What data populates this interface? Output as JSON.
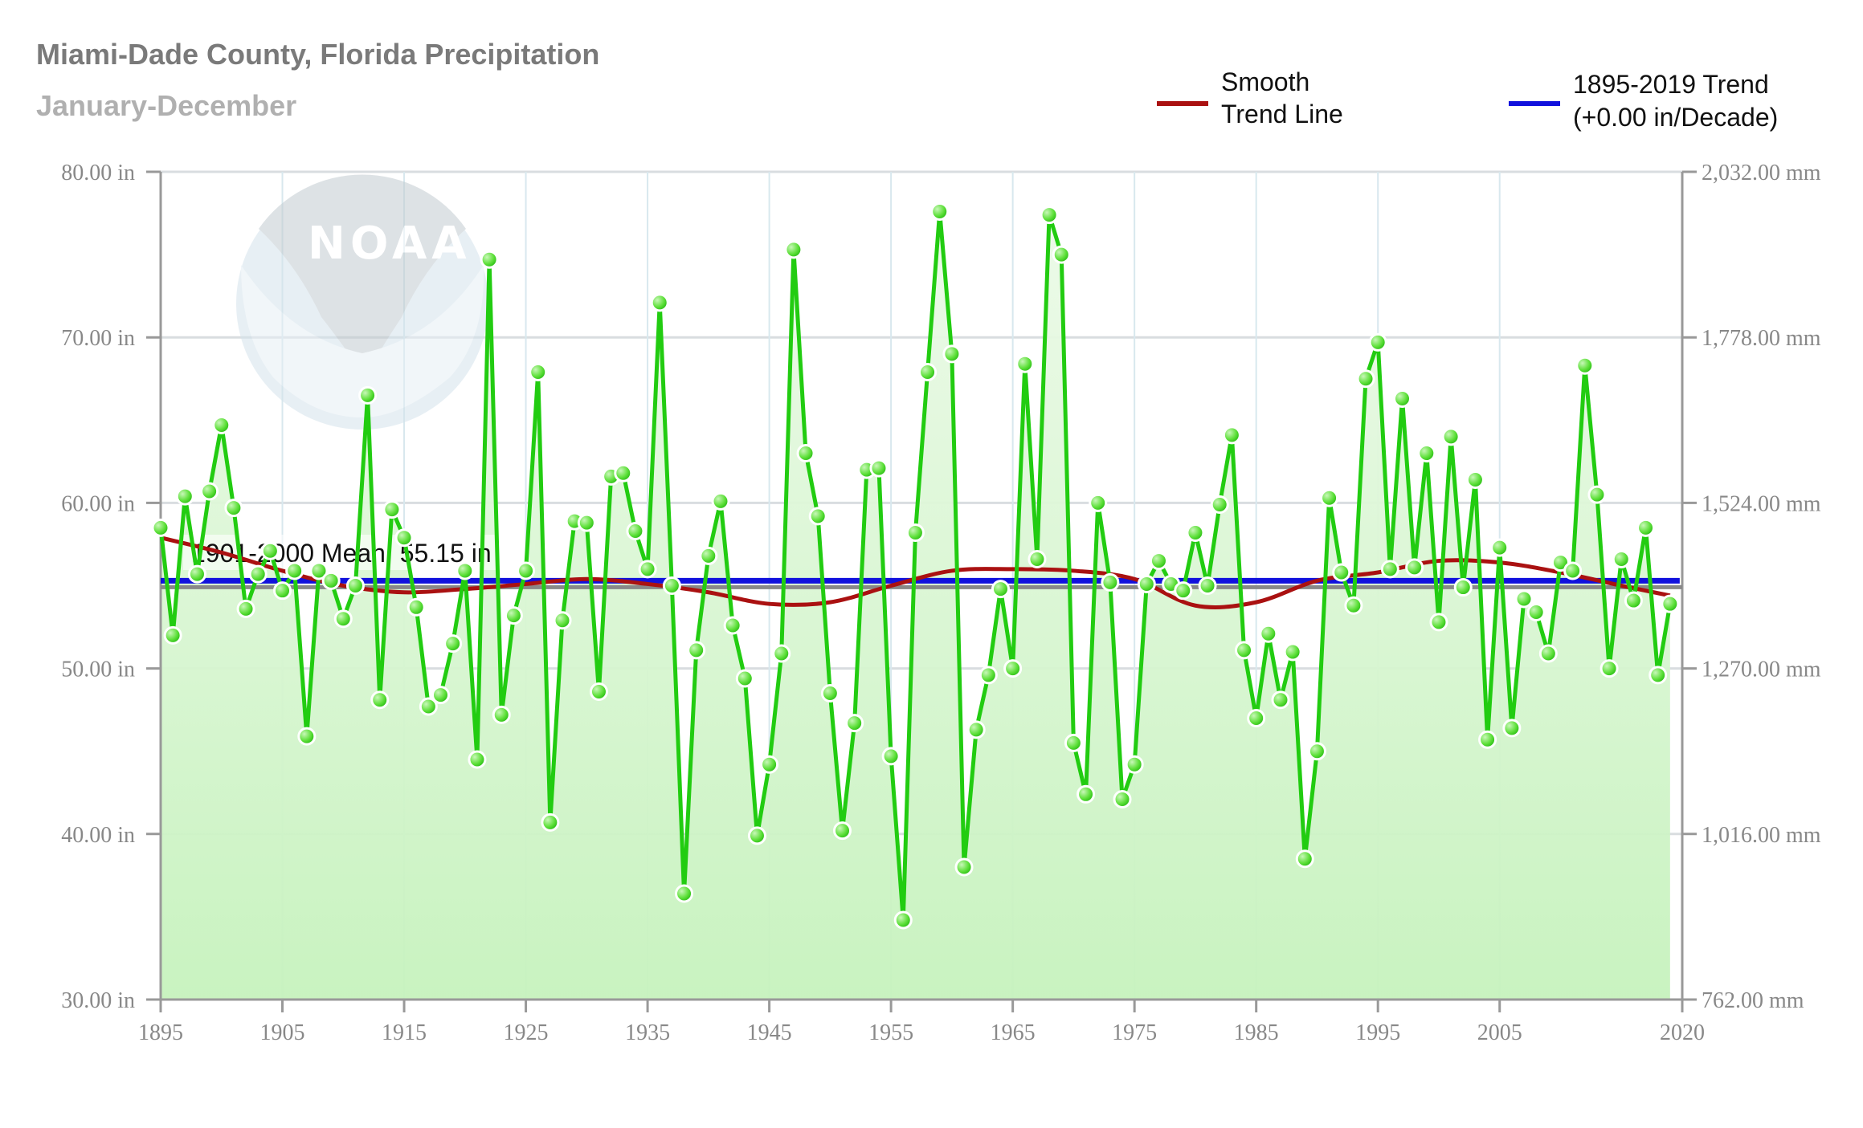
{
  "header": {
    "title": "Miami-Dade County, Florida Precipitation",
    "subtitle": "January-December"
  },
  "legend": {
    "smooth_line1": "Smooth",
    "smooth_line2": "Trend Line",
    "trend_line1": "1895-2019 Trend",
    "trend_line2": "(+0.00 in/Decade)"
  },
  "logo": {
    "text": "NOAA",
    "icon": "noaa-logo-icon"
  },
  "mean_label": "1901-2000 Mean: 55.15 in",
  "colors": {
    "series": "#22cc11",
    "fill_top": "#e3f8dd",
    "fill_bottom": "#c6f2bd",
    "smooth": "#aa1111",
    "trend": "#1111dd",
    "mean": "#888888",
    "grid": "#d9dde0",
    "grid_v": "#d8e8ee"
  },
  "chart_data": {
    "type": "line",
    "title": "Miami-Dade County, Florida Precipitation",
    "subtitle": "January-December",
    "ylim": [
      30,
      80
    ],
    "xlim": [
      1895,
      2020
    ],
    "y_ticks": [
      "30.00 in",
      "40.00 in",
      "50.00 in",
      "60.00 in",
      "70.00 in",
      "80.00 in"
    ],
    "y2_ticks": [
      "762.00 mm",
      "1,016.00 mm",
      "1,270.00 mm",
      "1,524.00 mm",
      "1,778.00 mm",
      "2,032.00 mm"
    ],
    "x_ticks": [
      "1895",
      "1905",
      "1915",
      "1925",
      "1935",
      "1945",
      "1955",
      "1965",
      "1975",
      "1985",
      "1995",
      "2005",
      "2020"
    ],
    "mean": 55.15,
    "trend": {
      "name": "1895-2019 Trend",
      "start": [
        1895,
        55.3
      ],
      "end": [
        2019,
        55.3
      ]
    },
    "smooth": {
      "name": "Smooth Trend Line",
      "x": [
        1895,
        1900,
        1905,
        1910,
        1915,
        1920,
        1925,
        1930,
        1935,
        1940,
        1945,
        1950,
        1955,
        1960,
        1965,
        1970,
        1975,
        1980,
        1985,
        1990,
        1995,
        2000,
        2005,
        2010,
        2015,
        2019
      ],
      "y": [
        57.9,
        57.0,
        55.9,
        55.0,
        54.6,
        54.8,
        55.1,
        55.4,
        55.1,
        54.6,
        53.9,
        54.0,
        55.0,
        55.9,
        56.0,
        55.9,
        55.4,
        53.8,
        54.0,
        55.3,
        55.8,
        56.5,
        56.4,
        55.8,
        55.0,
        54.4
      ]
    },
    "series": [
      {
        "name": "Precipitation",
        "x": [
          1895,
          1896,
          1897,
          1898,
          1899,
          1900,
          1901,
          1902,
          1903,
          1904,
          1905,
          1906,
          1907,
          1908,
          1909,
          1910,
          1911,
          1912,
          1913,
          1914,
          1915,
          1916,
          1917,
          1918,
          1919,
          1920,
          1921,
          1922,
          1923,
          1924,
          1925,
          1926,
          1927,
          1928,
          1929,
          1930,
          1931,
          1932,
          1933,
          1934,
          1935,
          1936,
          1937,
          1938,
          1939,
          1940,
          1941,
          1942,
          1943,
          1944,
          1945,
          1946,
          1947,
          1948,
          1949,
          1950,
          1951,
          1952,
          1953,
          1954,
          1955,
          1956,
          1957,
          1958,
          1959,
          1960,
          1961,
          1962,
          1963,
          1964,
          1965,
          1966,
          1967,
          1968,
          1969,
          1970,
          1971,
          1972,
          1973,
          1974,
          1975,
          1976,
          1977,
          1978,
          1979,
          1980,
          1981,
          1982,
          1983,
          1984,
          1985,
          1986,
          1987,
          1988,
          1989,
          1990,
          1991,
          1992,
          1993,
          1994,
          1995,
          1996,
          1997,
          1998,
          1999,
          2000,
          2001,
          2002,
          2003,
          2004,
          2005,
          2006,
          2007,
          2008,
          2009,
          2010,
          2011,
          2012,
          2013,
          2014,
          2015,
          2016,
          2017,
          2018,
          2019
        ],
        "values": [
          58.5,
          52.0,
          60.4,
          55.7,
          60.7,
          64.7,
          59.7,
          53.6,
          55.7,
          57.1,
          54.7,
          55.9,
          45.9,
          55.9,
          55.3,
          53.0,
          55.0,
          66.5,
          48.1,
          59.6,
          57.9,
          53.7,
          47.7,
          48.4,
          51.5,
          55.9,
          44.5,
          74.7,
          47.2,
          53.2,
          55.9,
          67.9,
          40.7,
          52.9,
          58.9,
          58.8,
          48.6,
          61.6,
          61.8,
          58.3,
          56.0,
          72.1,
          55.0,
          36.4,
          51.1,
          56.8,
          60.1,
          52.6,
          49.4,
          39.9,
          44.2,
          50.9,
          75.3,
          63.0,
          59.2,
          48.5,
          40.2,
          46.7,
          62.0,
          62.1,
          44.7,
          34.8,
          58.2,
          67.9,
          77.6,
          69.0,
          38.0,
          46.3,
          49.6,
          54.8,
          50.0,
          68.4,
          56.6,
          77.4,
          75.0,
          45.5,
          42.4,
          60.0,
          55.2,
          42.1,
          44.2,
          55.1,
          56.5,
          55.1,
          54.7,
          58.2,
          55.0,
          59.9,
          64.1,
          51.1,
          47.0,
          52.1,
          48.1,
          51.0,
          38.5,
          45.0,
          60.3,
          55.8,
          53.8,
          67.5,
          69.7,
          56.0,
          66.3,
          56.1,
          63.0,
          52.8,
          64.0,
          54.9,
          61.4,
          45.7,
          57.3,
          46.4,
          54.2,
          53.4,
          50.9,
          56.4,
          55.9,
          68.3,
          60.5,
          50.0,
          56.6,
          54.1,
          58.5,
          49.6,
          53.9
        ]
      }
    ]
  }
}
